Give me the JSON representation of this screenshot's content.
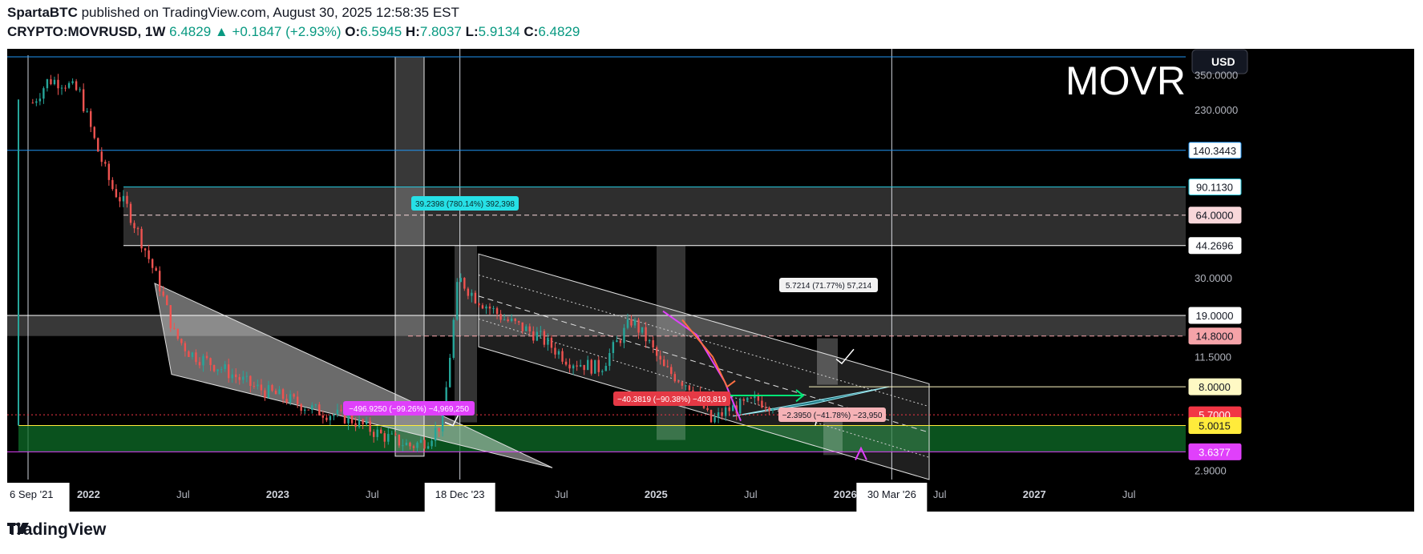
{
  "header": {
    "author": "SpartaBTC",
    "published_text": "published on TradingView.com, August 30, 2025 12:58:35 EST",
    "symbol": "CRYPTO:MOVRUSD",
    "interval": "1W",
    "last": "6.4829",
    "change": "+0.1847 (+2.93%)",
    "o_label": "O:",
    "o": "6.5945",
    "h_label": "H:",
    "h": "7.8037",
    "l_label": "L:",
    "l": "5.9134",
    "c_label": "C:",
    "c": "6.4829"
  },
  "footer": {
    "brand": "TradingView"
  },
  "chart_data": {
    "type": "line",
    "title": "MOVR",
    "currency_button": "USD",
    "y_scale": "log",
    "ylim": [
      2.6,
      480
    ],
    "x_tick_labels": [
      "6 Sep '21",
      "2022",
      "Jul",
      "2023",
      "Jul",
      "18 Dec '23",
      "Jul",
      "2025",
      "Jul",
      "2026",
      "30 Mar '26",
      "Jul",
      "2027",
      "Jul"
    ],
    "y_tick_labels": [
      "350.0000",
      "230.0000",
      "30.0000",
      "11.5000",
      "2.9000"
    ],
    "price_labels": [
      {
        "text": "140.3443",
        "value": 140.3443,
        "bg": "#ffffff",
        "border": "#2196f3",
        "color": "#131722"
      },
      {
        "text": "90.1130",
        "value": 90.113,
        "bg": "#ffffff",
        "border": "#26c6da",
        "color": "#131722"
      },
      {
        "text": "64.0000",
        "value": 64.0,
        "bg": "#f8d7da",
        "border": "#f8d7da",
        "color": "#131722"
      },
      {
        "text": "44.2696",
        "value": 44.2696,
        "bg": "#ffffff",
        "border": "#ffffff",
        "color": "#131722"
      },
      {
        "text": "19.0000",
        "value": 19.0,
        "bg": "#ffffff",
        "border": "#ffffff",
        "color": "#131722"
      },
      {
        "text": "14.8000",
        "value": 14.8,
        "bg": "#f5a3a8",
        "border": "#f5a3a8",
        "color": "#131722"
      },
      {
        "text": "8.0000",
        "value": 8.0,
        "bg": "#fff9c4",
        "border": "#fff9c4",
        "color": "#131722"
      },
      {
        "text": "5.7000",
        "value": 5.7,
        "bg": "#f23645",
        "border": "#f23645",
        "color": "#ffffff"
      },
      {
        "text": "5.0015",
        "value": 5.0015,
        "bg": "#ffeb3b",
        "border": "#ffeb3b",
        "color": "#131722"
      },
      {
        "text": "3.6377",
        "value": 3.6377,
        "bg": "#e040fb",
        "border": "#e040fb",
        "color": "#ffffff"
      }
    ],
    "measure_labels": [
      {
        "text": "39.2398 (780.14%) 392,398",
        "bg": "#26e0e6",
        "color": "#0a2a2a"
      },
      {
        "text": "−496.9250 (−99.26%) −4,969,250",
        "bg": "#e040fb",
        "color": "#ffffff"
      },
      {
        "text": "−40.3819 (−90.38%) −403,819",
        "bg": "#e53945",
        "color": "#ffffff"
      },
      {
        "text": "5.7214 (71.77%) 57,214",
        "bg": "#f2f2f2",
        "color": "#131722"
      },
      {
        "text": "−2.3950 (−41.78%) −23,950",
        "bg": "#f5b2b6",
        "color": "#131722"
      }
    ],
    "series": [
      {
        "type": "candlestick",
        "x": [
          "2021-09",
          "2021-10",
          "2021-11",
          "2021-12",
          "2022-01",
          "2022-02",
          "2022-03",
          "2022-04",
          "2022-05",
          "2022-06",
          "2022-07",
          "2022-09",
          "2022-11",
          "2023-01",
          "2023-03",
          "2023-05",
          "2023-07",
          "2023-09",
          "2023-10",
          "2023-11",
          "2023-12",
          "2024-01",
          "2024-03",
          "2024-05",
          "2024-07",
          "2024-09",
          "2024-11",
          "2024-12",
          "2025-01",
          "2025-03",
          "2025-04",
          "2025-05",
          "2025-07",
          "2025-08"
        ],
        "close": [
          250,
          330,
          320,
          280,
          150,
          90,
          70,
          45,
          28,
          15,
          12,
          10,
          8,
          7,
          6,
          5.5,
          4.5,
          3.9,
          4.2,
          5.2,
          30,
          24,
          18,
          15,
          11,
          10,
          18,
          14,
          10,
          7.8,
          5.2,
          6.0,
          6.8,
          6.5
        ]
      }
    ],
    "colors": {
      "up": "#26a69a",
      "down": "#ef5350",
      "accent": "#089981"
    },
    "grid": false,
    "legend": "none"
  }
}
